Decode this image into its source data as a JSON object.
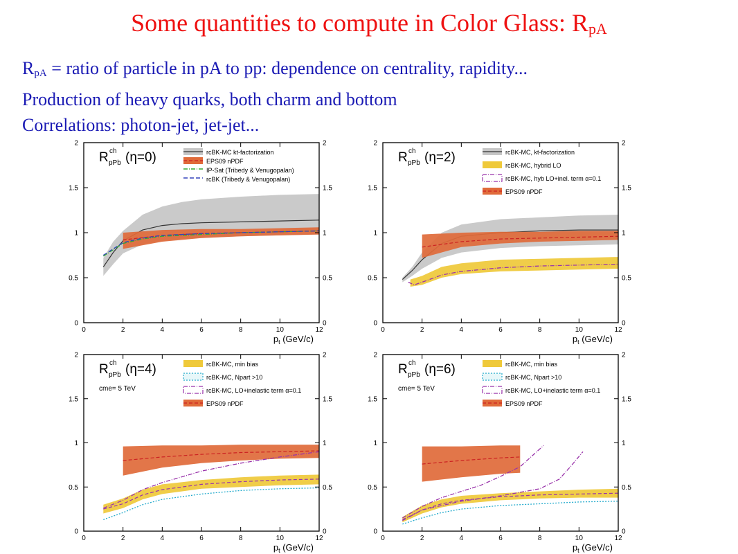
{
  "slide": {
    "title_main": "Some quantities to compute in Color Glass: R",
    "title_sub": "pA",
    "bullets": [
      {
        "pre": "R",
        "sub": "pA",
        "text": " = ratio of particle in pA to pp: dependence on centrality, rapidity..."
      },
      {
        "pre": "",
        "sub": "",
        "text": "Production of heavy quarks, both charm and bottom"
      },
      {
        "pre": "",
        "sub": "",
        "text": "Correlations: photon-jet, jet-jet..."
      }
    ]
  },
  "chart_data": [
    {
      "type": "area",
      "panel_label": {
        "main": "R",
        "sup": "ch",
        "sub": "pPb",
        "arg": "(η=0)"
      },
      "note": "",
      "xlabel": "p",
      "xlabel_sub": "t",
      "xlabel_unit": " (GeV/c)",
      "xlim": [
        0,
        12
      ],
      "ylim": [
        0,
        2
      ],
      "xticks": [
        0,
        2,
        4,
        6,
        8,
        10,
        12
      ],
      "yticks": [
        0,
        0.5,
        1,
        1.5,
        2
      ],
      "legend": [
        {
          "label": "rcBK-MC kt-factorization",
          "kind": "band",
          "color": "#c6c6c6",
          "edge": "#333333"
        },
        {
          "label": "EPS09 nPDF",
          "kind": "band",
          "color": "#e06a3a",
          "edge": "#cc2222"
        },
        {
          "label": "IP-Sat (Tribedy & Venugopalan)",
          "kind": "line",
          "color": "#33aa33",
          "dash": "6 2 1 2"
        },
        {
          "label": "rcBK (Tribedy & Venugopalan)",
          "kind": "line",
          "color": "#3344bb",
          "dash": "6 3"
        }
      ],
      "series": [
        {
          "name": "rcBK-MC kt-factorization",
          "type": "band",
          "color": "#c6c6c6",
          "line": "#333333",
          "x": [
            1,
            1.5,
            2,
            3,
            4,
            5,
            6,
            8,
            10,
            12
          ],
          "low": [
            0.52,
            0.65,
            0.77,
            0.87,
            0.91,
            0.93,
            0.94,
            0.96,
            0.97,
            0.98
          ],
          "mid": [
            0.62,
            0.78,
            0.91,
            1.03,
            1.08,
            1.1,
            1.11,
            1.12,
            1.13,
            1.14
          ],
          "high": [
            0.72,
            0.9,
            1.02,
            1.2,
            1.29,
            1.34,
            1.37,
            1.4,
            1.42,
            1.43
          ]
        },
        {
          "name": "EPS09 nPDF",
          "type": "band",
          "color": "#e06a3a",
          "line": "#cc2222",
          "x": [
            2,
            4,
            6,
            8,
            10,
            12
          ],
          "low": [
            0.82,
            0.9,
            0.94,
            0.96,
            0.97,
            0.98
          ],
          "mid": [
            0.92,
            0.97,
            0.99,
            1.0,
            1.01,
            1.02
          ],
          "high": [
            1.0,
            1.03,
            1.04,
            1.04,
            1.05,
            1.06
          ]
        },
        {
          "name": "IP-Sat (Tribedy & Venugopalan)",
          "type": "line",
          "color": "#33aa33",
          "dash": "6 2 1 2",
          "x": [
            1,
            2,
            3,
            4,
            6,
            8,
            10,
            12
          ],
          "y": [
            0.74,
            0.88,
            0.93,
            0.96,
            0.98,
            1.0,
            1.01,
            1.02
          ]
        },
        {
          "name": "rcBK (Tribedy & Venugopalan)",
          "type": "line",
          "color": "#3344bb",
          "dash": "6 3",
          "x": [
            1,
            2,
            3,
            4,
            6,
            8,
            10,
            12
          ],
          "y": [
            0.75,
            0.89,
            0.94,
            0.97,
            0.99,
            1.0,
            1.01,
            1.02
          ]
        }
      ]
    },
    {
      "type": "area",
      "panel_label": {
        "main": "R",
        "sup": "ch",
        "sub": "pPb",
        "arg": "(η=2)"
      },
      "note": "",
      "xlabel": "p",
      "xlabel_sub": "t",
      "xlabel_unit": " (GeV/c)",
      "xlim": [
        0,
        12
      ],
      "ylim": [
        0,
        2
      ],
      "xticks": [
        0,
        2,
        4,
        6,
        8,
        10,
        12
      ],
      "yticks": [
        0,
        0.5,
        1,
        1.5,
        2
      ],
      "legend": [
        {
          "label": "rcBK-MC, kt-factorization",
          "kind": "band",
          "color": "#c6c6c6",
          "edge": "#333333"
        },
        {
          "label": "rcBK-MC, hybrid LO",
          "kind": "band",
          "color": "#efc93a",
          "edge": "#efc93a"
        },
        {
          "label": "rcBK-MC, hyb LO+inel. term α=0.1",
          "kind": "box",
          "color": "#ffffff",
          "edge": "#9933aa",
          "dash": "6 2 1 2"
        },
        {
          "label": "EPS09 nPDF",
          "kind": "band",
          "color": "#e06a3a",
          "edge": "#cc2222"
        }
      ],
      "series": [
        {
          "name": "rcBK-MC, kt-factorization",
          "type": "band",
          "color": "#c6c6c6",
          "line": "#333333",
          "x": [
            1,
            1.5,
            2,
            3,
            4,
            6,
            8,
            10,
            12
          ],
          "low": [
            0.45,
            0.52,
            0.6,
            0.72,
            0.78,
            0.83,
            0.85,
            0.86,
            0.87
          ],
          "mid": [
            0.48,
            0.58,
            0.7,
            0.88,
            0.96,
            1.0,
            1.02,
            1.03,
            1.03
          ],
          "high": [
            0.5,
            0.62,
            0.78,
            1.0,
            1.09,
            1.15,
            1.17,
            1.19,
            1.2
          ]
        },
        {
          "name": "EPS09 nPDF",
          "type": "band",
          "color": "#e06a3a",
          "line": "#cc2222",
          "x": [
            2,
            4,
            6,
            8,
            10,
            12
          ],
          "low": [
            0.72,
            0.84,
            0.88,
            0.9,
            0.91,
            0.92
          ],
          "mid": [
            0.84,
            0.9,
            0.93,
            0.94,
            0.95,
            0.96
          ],
          "high": [
            0.98,
            1.0,
            1.01,
            1.01,
            1.02,
            1.02
          ]
        },
        {
          "name": "rcBK-MC, hybrid LO",
          "type": "band",
          "color": "#efc93a",
          "line": "",
          "x": [
            1.4,
            2,
            3,
            4,
            6,
            8,
            10,
            12
          ],
          "low": [
            0.4,
            0.42,
            0.5,
            0.54,
            0.57,
            0.58,
            0.59,
            0.6
          ],
          "mid": [
            0.43,
            0.47,
            0.56,
            0.6,
            0.63,
            0.64,
            0.65,
            0.66
          ],
          "high": [
            0.48,
            0.52,
            0.62,
            0.66,
            0.7,
            0.71,
            0.72,
            0.73
          ]
        },
        {
          "name": "rcBK-MC, hyb LO+inel. term α=0.1",
          "type": "line",
          "color": "#9933aa",
          "dash": "6 2 1 2",
          "x": [
            1.3,
            1.6,
            2,
            3,
            4,
            6,
            8,
            10,
            12
          ],
          "y": [
            0.45,
            0.42,
            0.45,
            0.53,
            0.57,
            0.61,
            0.63,
            0.64,
            0.65
          ]
        }
      ]
    },
    {
      "type": "area",
      "panel_label": {
        "main": "R",
        "sup": "ch",
        "sub": "pPb",
        "arg": "(η=4)"
      },
      "note": "cme= 5 TeV",
      "xlabel": "p",
      "xlabel_sub": "t",
      "xlabel_unit": " (GeV/c)",
      "xlim": [
        0,
        12
      ],
      "ylim": [
        0,
        2
      ],
      "xticks": [
        0,
        2,
        4,
        6,
        8,
        10,
        12
      ],
      "yticks": [
        0,
        0.5,
        1,
        1.5,
        2
      ],
      "legend": [
        {
          "label": "rcBK-MC, min bias",
          "kind": "band",
          "color": "#efc93a",
          "edge": "#efc93a"
        },
        {
          "label": "rcBK-MC, Npart >10",
          "kind": "box",
          "color": "#e7f7f9",
          "edge": "#22aacc",
          "dash": "2 2"
        },
        {
          "label": "rcBK-MC, LO+inelastic term α=0.1",
          "kind": "box",
          "color": "#ffffff",
          "edge": "#9933aa",
          "dash": "6 2 1 2"
        },
        {
          "label": "EPS09 nPDF",
          "kind": "band",
          "color": "#e06a3a",
          "edge": "#cc2222"
        }
      ],
      "series": [
        {
          "name": "EPS09 nPDF",
          "type": "band",
          "color": "#e06a3a",
          "line": "#cc2222",
          "x": [
            2,
            4,
            6,
            8,
            10,
            12
          ],
          "low": [
            0.63,
            0.72,
            0.77,
            0.8,
            0.82,
            0.83
          ],
          "mid": [
            0.8,
            0.84,
            0.87,
            0.89,
            0.9,
            0.91
          ],
          "high": [
            0.96,
            0.97,
            0.97,
            0.98,
            0.98,
            0.98
          ]
        },
        {
          "name": "rcBK-MC, min bias",
          "type": "band",
          "color": "#efc93a",
          "line": "#9933aa",
          "x": [
            1,
            2,
            3,
            4,
            6,
            8,
            10,
            12
          ],
          "low": [
            0.2,
            0.26,
            0.36,
            0.42,
            0.48,
            0.5,
            0.52,
            0.53
          ],
          "mid": [
            0.25,
            0.31,
            0.41,
            0.47,
            0.53,
            0.56,
            0.58,
            0.59
          ],
          "high": [
            0.3,
            0.37,
            0.47,
            0.53,
            0.58,
            0.61,
            0.63,
            0.64
          ]
        },
        {
          "name": "rcBK-MC, Npart >10",
          "type": "line",
          "color": "#22aacc",
          "dash": "2 2",
          "x": [
            1,
            2,
            3,
            4,
            6,
            8,
            10,
            12
          ],
          "y": [
            0.13,
            0.21,
            0.3,
            0.36,
            0.42,
            0.46,
            0.48,
            0.49
          ]
        },
        {
          "name": "rcBK-MC, LO+inelastic term α=0.1",
          "type": "line",
          "color": "#9933aa",
          "dash": "6 2 1 2",
          "x": [
            1,
            2,
            3,
            4,
            6,
            8,
            10,
            12
          ],
          "y": [
            0.26,
            0.35,
            0.47,
            0.55,
            0.68,
            0.77,
            0.84,
            0.9
          ]
        }
      ]
    },
    {
      "type": "area",
      "panel_label": {
        "main": "R",
        "sup": "ch",
        "sub": "pPb",
        "arg": "(η=6)"
      },
      "note": "cme= 5 TeV",
      "xlabel": "p",
      "xlabel_sub": "t",
      "xlabel_unit": " (GeV/c)",
      "xlim": [
        0,
        12
      ],
      "ylim": [
        0,
        2
      ],
      "xticks": [
        0,
        2,
        4,
        6,
        8,
        10,
        12
      ],
      "yticks": [
        0,
        0.5,
        1,
        1.5,
        2
      ],
      "legend": [
        {
          "label": "rcBK-MC, min bias",
          "kind": "band",
          "color": "#efc93a",
          "edge": "#efc93a"
        },
        {
          "label": "rcBK-MC, Npart >10",
          "kind": "box",
          "color": "#e7f7f9",
          "edge": "#22aacc",
          "dash": "2 2"
        },
        {
          "label": "rcBK-MC, LO+inelastic term α=0.1",
          "kind": "box",
          "color": "#ffffff",
          "edge": "#9933aa",
          "dash": "6 2 1 2"
        },
        {
          "label": "EPS09 nPDF",
          "kind": "band",
          "color": "#e06a3a",
          "edge": "#cc2222"
        }
      ],
      "series": [
        {
          "name": "EPS09 nPDF",
          "type": "band",
          "color": "#e06a3a",
          "line": "#cc2222",
          "x": [
            2,
            4,
            6,
            7
          ],
          "low": [
            0.56,
            0.61,
            0.65,
            0.66
          ],
          "mid": [
            0.76,
            0.8,
            0.83,
            0.84
          ],
          "high": [
            0.96,
            0.96,
            0.97,
            0.97
          ]
        },
        {
          "name": "rcBK-MC, min bias",
          "type": "band",
          "color": "#efc93a",
          "line": "#9933aa",
          "x": [
            1,
            2,
            3,
            4,
            6,
            8,
            10,
            12
          ],
          "low": [
            0.1,
            0.2,
            0.27,
            0.31,
            0.35,
            0.37,
            0.38,
            0.38
          ],
          "mid": [
            0.13,
            0.24,
            0.31,
            0.35,
            0.39,
            0.41,
            0.42,
            0.43
          ],
          "high": [
            0.16,
            0.29,
            0.36,
            0.4,
            0.43,
            0.45,
            0.47,
            0.48
          ]
        },
        {
          "name": "rcBK-MC, Npart >10",
          "type": "line",
          "color": "#22aacc",
          "dash": "2 2",
          "x": [
            1,
            2,
            3,
            4,
            6,
            8,
            10,
            12
          ],
          "y": [
            0.08,
            0.15,
            0.21,
            0.25,
            0.29,
            0.31,
            0.33,
            0.34
          ]
        },
        {
          "name": "rcBK-MC, LO+inelastic term α=0.1 (A)",
          "type": "line",
          "color": "#9933aa",
          "dash": "6 2 1 2",
          "x": [
            1,
            2,
            3,
            4,
            5,
            6,
            7,
            7.6,
            8.2
          ],
          "y": [
            0.15,
            0.28,
            0.38,
            0.45,
            0.52,
            0.62,
            0.73,
            0.85,
            0.97
          ]
        },
        {
          "name": "rcBK-MC, LO+inelastic term α=0.1 (B)",
          "type": "line",
          "color": "#9933aa",
          "dash": "6 2 1 2",
          "x": [
            1,
            2,
            4,
            6,
            8,
            9,
            9.6,
            10.2
          ],
          "y": [
            0.12,
            0.24,
            0.34,
            0.4,
            0.48,
            0.59,
            0.74,
            0.9
          ]
        }
      ]
    }
  ]
}
